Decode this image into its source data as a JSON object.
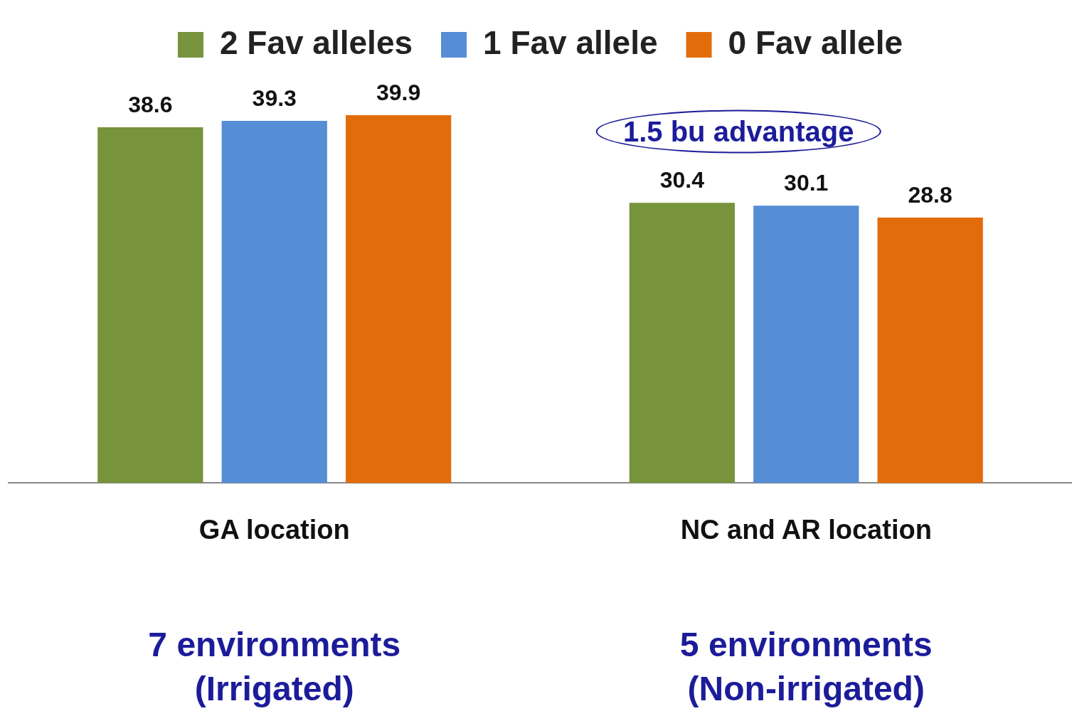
{
  "chart_data": {
    "type": "bar",
    "categories": [
      "GA location",
      "NC and AR location"
    ],
    "series": [
      {
        "name": "2 Fav alleles",
        "color": "#77933c",
        "values": [
          38.6,
          30.4
        ]
      },
      {
        "name": "1 Fav allele",
        "color": "#558ed5",
        "values": [
          39.3,
          30.1
        ]
      },
      {
        "name": "0 Fav allele",
        "color": "#e36c0a",
        "values": [
          39.9,
          28.8
        ]
      }
    ],
    "tick_labels": "x",
    "grid": false,
    "legend": "top",
    "data_labels": true,
    "annotations": [
      "1.5 bu advantage",
      "7 environments\n(Irrigated)",
      "5 environments\n(Non-irrigated)"
    ]
  }
}
